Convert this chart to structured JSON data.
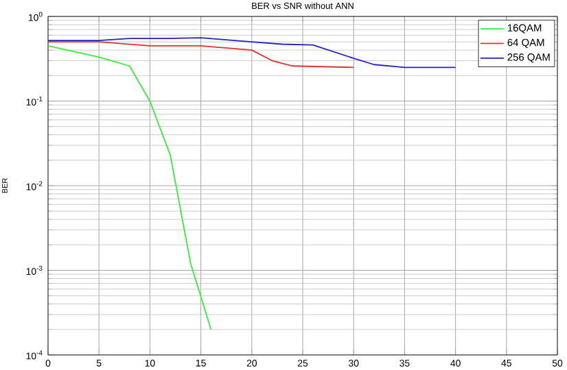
{
  "chart_data": {
    "type": "line",
    "title": "BER vs SNR without ANN",
    "ylabel": "BER",
    "log": "y",
    "grid": true,
    "legend": "top right",
    "line_style": "solid",
    "xlim": [
      0,
      50
    ],
    "xticks": [
      0,
      5,
      10,
      15,
      20,
      25,
      30,
      35,
      40,
      45,
      50
    ],
    "ylim": [
      0.0001,
      1
    ],
    "yticks": [
      {
        "value": 0.0001,
        "label": "10$^{-4}$"
      },
      {
        "value": 0.001,
        "label": "10$^{-3}$"
      },
      {
        "value": 0.01,
        "label": "10$^{-2}$"
      },
      {
        "value": 0.1,
        "label": "10$^{-1}$"
      },
      {
        "value": 1,
        "label": "10$^{0}$"
      }
    ],
    "series": [
      {
        "name": "16QAM",
        "color": "#33ee33",
        "x": [
          0,
          5,
          8,
          10,
          12,
          14,
          16
        ],
        "values": [
          0.45,
          0.33,
          0.26,
          0.1,
          0.023,
          0.0012,
          0.0002
        ]
      },
      {
        "name": "64 QAM",
        "color": "#e03030",
        "x": [
          0,
          5,
          10,
          15,
          20,
          22,
          24,
          30
        ],
        "values": [
          0.5,
          0.5,
          0.45,
          0.45,
          0.4,
          0.3,
          0.26,
          0.25
        ]
      },
      {
        "name": "256 QAM",
        "color": "#2020d0",
        "x": [
          0,
          5,
          8,
          12,
          15,
          20,
          23,
          26,
          30,
          32,
          35,
          40
        ],
        "values": [
          0.52,
          0.52,
          0.55,
          0.55,
          0.56,
          0.5,
          0.47,
          0.46,
          0.32,
          0.27,
          0.25,
          0.25
        ]
      }
    ]
  }
}
